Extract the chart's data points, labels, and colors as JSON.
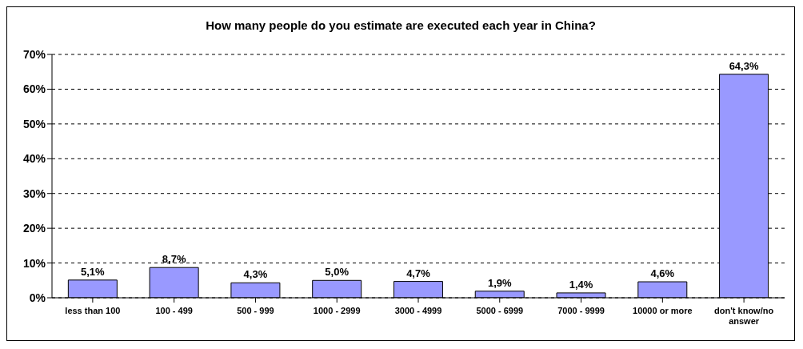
{
  "chart_data": {
    "type": "bar",
    "title": "How many people do you estimate are executed each year in China?",
    "categories": [
      "less than 100",
      "100 - 499",
      "500 - 999",
      "1000 - 2999",
      "3000 - 4999",
      "5000 - 6999",
      "7000 - 9999",
      "10000 or more",
      "don't know/no answer"
    ],
    "values": [
      5.1,
      8.7,
      4.3,
      5.0,
      4.7,
      1.9,
      1.4,
      4.6,
      64.3
    ],
    "value_labels": [
      "5,1%",
      "8,7%",
      "4,3%",
      "5,0%",
      "4,7%",
      "1,9%",
      "1,4%",
      "4,6%",
      "64,3%"
    ],
    "color": "#9999ff",
    "ylim": [
      0,
      70
    ],
    "yticks": [
      {
        "value": 0,
        "label": "0%"
      },
      {
        "value": 10,
        "label": "10%"
      },
      {
        "value": 20,
        "label": "20%"
      },
      {
        "value": 30,
        "label": "30%"
      },
      {
        "value": 40,
        "label": "40%"
      },
      {
        "value": 50,
        "label": "50%"
      },
      {
        "value": 60,
        "label": "60%"
      },
      {
        "value": 70,
        "label": "70%"
      }
    ],
    "grid": "y",
    "legend": false
  }
}
